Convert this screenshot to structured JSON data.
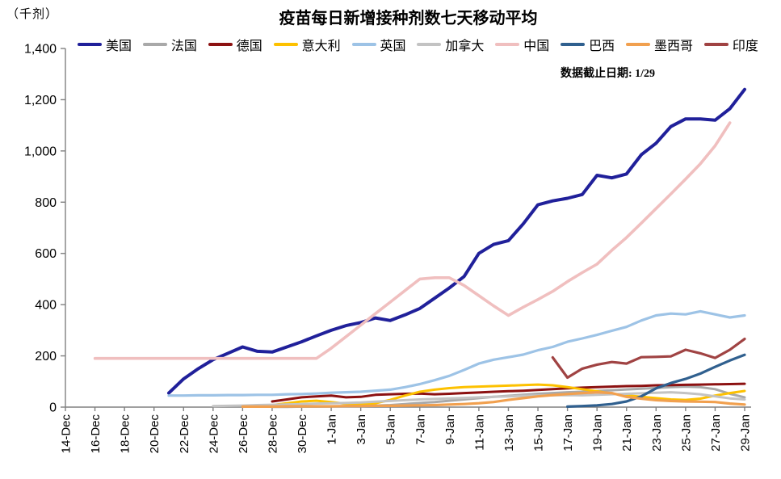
{
  "header": {
    "unit_label": "（千剂）",
    "title": "疫苗每日新增接种剂数七天移动平均",
    "annotation": "数据截止日期: 1/29"
  },
  "chart_data": {
    "type": "line",
    "title": "疫苗每日新增接种剂数七天移动平均",
    "ylabel": "（千剂）",
    "xlabel": "",
    "ylim": [
      0,
      1400
    ],
    "grid": false,
    "legend_position": "top",
    "axis_color": "#808080",
    "tick_text_color": "#000000",
    "x_start_date": "14-Dec",
    "x_end_date": "29-Jan",
    "days_total": 47,
    "tick_every_days": 2,
    "xtick_labels": [
      "14-Dec",
      "16-Dec",
      "18-Dec",
      "20-Dec",
      "22-Dec",
      "24-Dec",
      "26-Dec",
      "28-Dec",
      "30-Dec",
      "1-Jan",
      "3-Jan",
      "5-Jan",
      "7-Jan",
      "9-Jan",
      "11-Jan",
      "13-Jan",
      "15-Jan",
      "17-Jan",
      "19-Jan",
      "21-Jan",
      "23-Jan",
      "25-Jan",
      "27-Jan",
      "29-Jan"
    ],
    "ytick_values": [
      0,
      200,
      400,
      600,
      800,
      1000,
      1200,
      1400
    ],
    "ytick_labels": [
      "0",
      "200",
      "400",
      "600",
      "800",
      "1,000",
      "1,200",
      "1,400"
    ],
    "series": [
      {
        "id": "usa",
        "label": "美国",
        "color": "#20209a",
        "width": 4,
        "start": 7,
        "values": [
          55,
          110,
          150,
          185,
          210,
          235,
          218,
          215,
          235,
          255,
          278,
          300,
          318,
          330,
          348,
          338,
          360,
          385,
          425,
          465,
          510,
          600,
          635,
          650,
          715,
          790,
          805,
          815,
          830,
          905,
          895,
          910,
          985,
          1030,
          1095,
          1125,
          1125,
          1120,
          1165,
          1240
        ]
      },
      {
        "id": "france",
        "label": "法国",
        "color": "#a9a9a9",
        "width": 3,
        "start": 14,
        "values": [
          1,
          1,
          2,
          2,
          3,
          3,
          4,
          6,
          8,
          12,
          16,
          20,
          25,
          30,
          35,
          40,
          44,
          48,
          52,
          55,
          58,
          60,
          63,
          66,
          69,
          72,
          75,
          78,
          80,
          78,
          70,
          52,
          38
        ]
      },
      {
        "id": "germany",
        "label": "德国",
        "color": "#8c1111",
        "width": 3,
        "start": 14,
        "values": [
          22,
          30,
          38,
          42,
          45,
          38,
          40,
          48,
          50,
          52,
          53,
          50,
          52,
          55,
          57,
          60,
          62,
          64,
          67,
          70,
          73,
          76,
          78,
          80,
          82,
          83,
          85,
          86,
          87,
          88,
          89,
          90,
          91
        ]
      },
      {
        "id": "italy",
        "label": "意大利",
        "color": "#fdc100",
        "width": 3,
        "start": 13,
        "values": [
          3,
          8,
          15,
          22,
          25,
          20,
          13,
          10,
          15,
          28,
          45,
          60,
          68,
          74,
          78,
          80,
          82,
          84,
          86,
          88,
          85,
          78,
          70,
          62,
          53,
          46,
          40,
          35,
          30,
          28,
          33,
          45,
          55,
          63
        ]
      },
      {
        "id": "uk",
        "label": "英国",
        "color": "#9dc3e6",
        "width": 3.2,
        "start": 7,
        "values": [
          45,
          45,
          46,
          46,
          47,
          47,
          48,
          48,
          50,
          51,
          53,
          56,
          58,
          60,
          64,
          68,
          78,
          90,
          105,
          122,
          145,
          170,
          185,
          195,
          205,
          222,
          235,
          255,
          268,
          282,
          298,
          313,
          338,
          358,
          365,
          362,
          374,
          362,
          350,
          358
        ]
      },
      {
        "id": "canada",
        "label": "加拿大",
        "color": "#c3c3c3",
        "width": 3,
        "start": 10,
        "values": [
          4,
          5,
          6,
          8,
          9,
          10,
          12,
          14,
          15,
          16,
          18,
          21,
          24,
          27,
          30,
          32,
          34,
          36,
          38,
          40,
          42,
          44,
          45,
          46,
          47,
          46,
          48,
          50,
          52,
          54,
          56,
          58,
          55,
          50,
          42,
          34,
          30
        ]
      },
      {
        "id": "china",
        "label": "中国",
        "color": "#f0bfbf",
        "width": 3.6,
        "start": 2,
        "values": [
          190,
          190,
          190,
          190,
          190,
          190,
          190,
          190,
          190,
          190,
          190,
          190,
          190,
          190,
          190,
          190,
          230,
          275,
          320,
          365,
          410,
          455,
          500,
          505,
          505,
          475,
          435,
          395,
          358,
          390,
          420,
          452,
          490,
          525,
          558,
          612,
          662,
          718,
          775,
          832,
          890,
          950,
          1020,
          1110
        ]
      },
      {
        "id": "brazil",
        "label": "巴西",
        "color": "#30608f",
        "width": 3.2,
        "start": 34,
        "values": [
          2,
          4,
          7,
          12,
          22,
          42,
          73,
          94,
          110,
          131,
          157,
          182,
          204
        ]
      },
      {
        "id": "mexico",
        "label": "墨西哥",
        "color": "#f1a04f",
        "width": 3.2,
        "start": 12,
        "values": [
          2,
          2,
          2,
          3,
          3,
          3,
          3,
          4,
          4,
          5,
          5,
          6,
          7,
          8,
          10,
          12,
          15,
          20,
          28,
          35,
          42,
          47,
          51,
          55,
          58,
          55,
          40,
          33,
          27,
          24,
          22,
          21,
          20,
          14,
          10
        ]
      },
      {
        "id": "india",
        "label": "印度",
        "color": "#a04343",
        "width": 3.2,
        "start": 33,
        "values": [
          194,
          115,
          150,
          166,
          176,
          170,
          195,
          196,
          198,
          224,
          210,
          192,
          224,
          266
        ]
      }
    ]
  }
}
